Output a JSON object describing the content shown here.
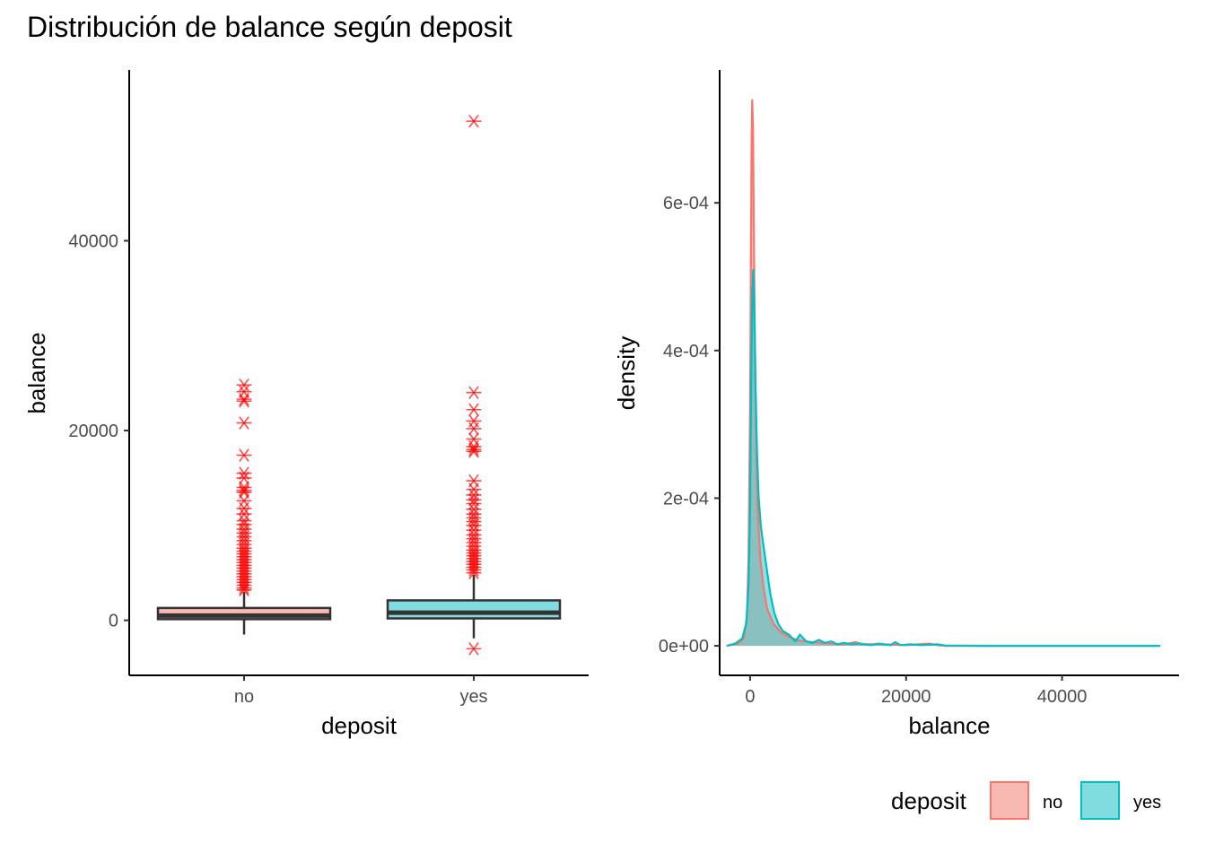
{
  "title": "Distribución de balance según deposit",
  "chart_data": [
    {
      "type": "box",
      "xlabel": "deposit",
      "ylabel": "balance",
      "categories": [
        "no",
        "yes"
      ],
      "ylim": [
        -5800,
        58000
      ],
      "yticks": [
        0,
        20000,
        40000
      ],
      "ytick_labels": [
        "0",
        "20000",
        "40000"
      ],
      "boxes": [
        {
          "category": "no",
          "fill": "#f8b9b3",
          "lower_whisker": -1500,
          "q1": 120,
          "median": 500,
          "q3": 1300,
          "upper_whisker": 3000,
          "outliers": [
            24800,
            24100,
            23300,
            23100,
            20800,
            17400,
            15500,
            15000,
            14000,
            13700,
            13500,
            12600,
            11800,
            11200,
            10500,
            10100,
            9600,
            9200,
            8800,
            8400,
            8000,
            7600,
            7300,
            7000,
            6700,
            6400,
            6100,
            5800,
            5500,
            5200,
            4900,
            4600,
            4300,
            4000,
            3700,
            3400,
            3200
          ]
        },
        {
          "category": "yes",
          "fill": "#80dcde",
          "lower_whisker": -1900,
          "q1": 200,
          "median": 800,
          "q3": 2100,
          "upper_whisker": 4800,
          "outliers": [
            52600,
            24000,
            22200,
            21000,
            20200,
            19100,
            18300,
            18000,
            17800,
            14700,
            13800,
            13200,
            12700,
            12300,
            11700,
            11200,
            10800,
            10400,
            10000,
            9500,
            9000,
            8600,
            8200,
            7800,
            7400,
            7100,
            6800,
            6500,
            6200,
            5900,
            5600,
            5300,
            5000,
            -3000
          ]
        }
      ],
      "outlier_color": "#ff0000"
    },
    {
      "type": "area",
      "xlabel": "balance",
      "ylabel": "density",
      "xlim": [
        -3900,
        55000
      ],
      "ylim": [
        -4e-05,
        0.00078
      ],
      "xticks": [
        0,
        20000,
        40000
      ],
      "xtick_labels": [
        "0",
        "20000",
        "40000"
      ],
      "yticks": [
        0,
        0.0002,
        0.0004,
        0.0006
      ],
      "ytick_labels": [
        "0e+00",
        "2e-04",
        "4e-04",
        "6e-04"
      ],
      "series": [
        {
          "name": "no",
          "color": "#f8766d",
          "fill": "#f8766d",
          "points": [
            [
              -3000,
              0
            ],
            [
              -1500,
              3e-06
            ],
            [
              -800,
              1e-05
            ],
            [
              -400,
              4e-05
            ],
            [
              -200,
              0.00012
            ],
            [
              0,
              0.00032
            ],
            [
              100,
              0.00052
            ],
            [
              200,
              0.00068
            ],
            [
              280,
              0.00074
            ],
            [
              380,
              0.0007
            ],
            [
              500,
              0.00055
            ],
            [
              650,
              0.00038
            ],
            [
              800,
              0.00026
            ],
            [
              1000,
              0.00018
            ],
            [
              1300,
              0.00012
            ],
            [
              1700,
              8e-05
            ],
            [
              2200,
              5e-05
            ],
            [
              3000,
              3e-05
            ],
            [
              4000,
              1.8e-05
            ],
            [
              5000,
              1.2e-05
            ],
            [
              6000,
              8e-06
            ],
            [
              7000,
              6e-06
            ],
            [
              8000,
              5e-06
            ],
            [
              9000,
              4e-06
            ],
            [
              10000,
              3e-06
            ],
            [
              12000,
              2e-06
            ],
            [
              13500,
              5e-06
            ],
            [
              14500,
              2e-06
            ],
            [
              17000,
              2e-06
            ],
            [
              20000,
              1e-06
            ],
            [
              23000,
              3e-06
            ],
            [
              24000,
              1e-06
            ],
            [
              25000,
              0
            ],
            [
              30000,
              0
            ],
            [
              40000,
              0
            ],
            [
              52000,
              0
            ]
          ]
        },
        {
          "name": "yes",
          "color": "#00bfc4",
          "fill": "#00bfc4",
          "points": [
            [
              -3000,
              0
            ],
            [
              -1900,
              3e-06
            ],
            [
              -1000,
              1e-05
            ],
            [
              -500,
              3e-05
            ],
            [
              -200,
              8e-05
            ],
            [
              0,
              0.00018
            ],
            [
              150,
              0.00036
            ],
            [
              300,
              0.00048
            ],
            [
              400,
              0.00051
            ],
            [
              550,
              0.00045
            ],
            [
              700,
              0.00035
            ],
            [
              900,
              0.00026
            ],
            [
              1100,
              0.0002
            ],
            [
              1400,
              0.00016
            ],
            [
              1800,
              0.00013
            ],
            [
              2200,
              0.0001
            ],
            [
              2600,
              7e-05
            ],
            [
              3100,
              4.5e-05
            ],
            [
              3600,
              3e-05
            ],
            [
              4200,
              2e-05
            ],
            [
              5000,
              1.5e-05
            ],
            [
              5800,
              6e-06
            ],
            [
              6400,
              1.5e-05
            ],
            [
              7200,
              6e-06
            ],
            [
              8000,
              4e-06
            ],
            [
              8800,
              8e-06
            ],
            [
              9600,
              4e-06
            ],
            [
              10400,
              6e-06
            ],
            [
              11200,
              2e-06
            ],
            [
              12000,
              4e-06
            ],
            [
              13000,
              2e-06
            ],
            [
              14000,
              3e-06
            ],
            [
              15500,
              1e-06
            ],
            [
              16500,
              3e-06
            ],
            [
              18000,
              1e-06
            ],
            [
              18600,
              5e-06
            ],
            [
              19300,
              1e-06
            ],
            [
              20500,
              2e-06
            ],
            [
              22000,
              1e-06
            ],
            [
              24000,
              2e-06
            ],
            [
              25000,
              5e-07
            ],
            [
              30000,
              0
            ],
            [
              40000,
              0
            ],
            [
              52600,
              0
            ]
          ]
        }
      ]
    }
  ],
  "legend": {
    "title": "deposit",
    "items": [
      {
        "label": "no",
        "fill": "#f8b9b3",
        "stroke": "#f8766d"
      },
      {
        "label": "yes",
        "fill": "#80dcde",
        "stroke": "#00bfc4"
      }
    ]
  }
}
